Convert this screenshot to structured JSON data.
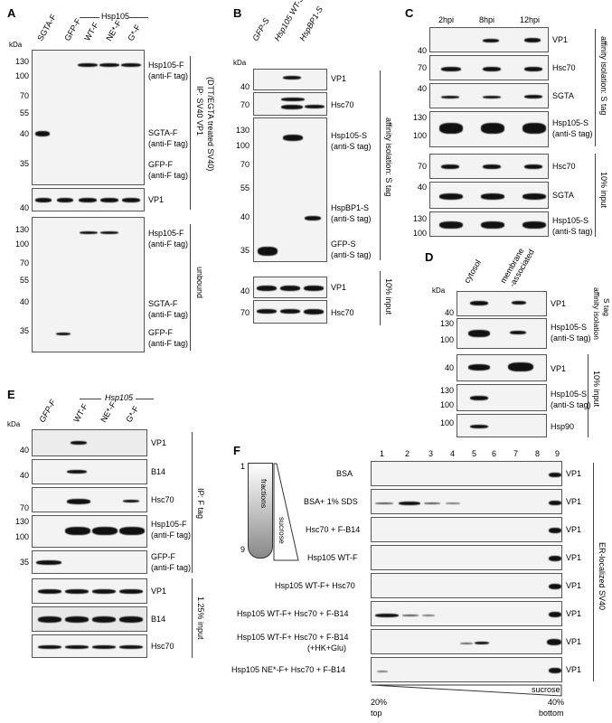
{
  "figure": {
    "panels": {
      "A": {
        "label": "A",
        "group_label": "Hsp105",
        "lanes": [
          "SGTA-F",
          "GFP-F",
          "WT-F",
          "NE*-F",
          "G*-F"
        ],
        "kda": "kDa",
        "top_markers": [
          "130",
          "100",
          "70",
          "55",
          "40",
          "35"
        ],
        "top_labels": [
          "Hsp105-F",
          "(anti-F tag)",
          "SGTA-F",
          "(anti-F tag)",
          "GFP-F",
          "(anti-F tag)"
        ],
        "vp1_marker": "40",
        "vp1_label": "VP1",
        "side_label_1": "IP: SV40 VP1",
        "side_label_2": "(DTT/EGTA treated SV40)",
        "bottom_markers": [
          "130",
          "100",
          "70",
          "55",
          "40",
          "35"
        ],
        "bottom_labels": [
          "Hsp105-F",
          "(anti-F tag)",
          "SGTA-F",
          "(anti-F tag)",
          "GFP-F",
          "(anti-F tag)"
        ],
        "unbound": "unbound"
      },
      "B": {
        "label": "B",
        "lanes": [
          "GFP-S",
          "Hsp105 WT-S",
          "HspBP1-S"
        ],
        "kda": "kDa",
        "vp1_marker": "40",
        "vp1_label": "VP1",
        "hsc_marker": "70",
        "hsc_label": "Hsc70",
        "main_markers": [
          "130",
          "100",
          "70",
          "55",
          "40",
          "35"
        ],
        "main_labels": [
          "Hsp105-S",
          "(anti-S tag)",
          "HspBP1-S",
          "(anti-S tag)",
          "GFP-S",
          "(anti-S tag)"
        ],
        "side_label": "affinity isolation: S tag",
        "input_markers": [
          "40",
          "70"
        ],
        "input_labels": [
          "VP1",
          "Hsc70"
        ],
        "input_side": "10% input"
      },
      "C": {
        "label": "C",
        "lanes": [
          "2hpi",
          "8hpi",
          "12hpi"
        ],
        "markers": [
          "40",
          "70",
          "40",
          "130",
          "100",
          "70",
          "40",
          "130",
          "100"
        ],
        "labels": [
          "VP1",
          "Hsc70",
          "SGTA",
          "Hsp105-S",
          "(anti-S tag)",
          "Hsc70",
          "SGTA",
          "Hsp105-S",
          "(anti-S tag)"
        ],
        "side_top": "affinity isolation: S tag",
        "side_bottom": "10% input"
      },
      "D": {
        "label": "D",
        "lanes": [
          "cytosol",
          "membrane",
          "-associated"
        ],
        "kda": "kDa",
        "markers": [
          "40",
          "130",
          "100",
          "40",
          "130",
          "100",
          "100"
        ],
        "labels": [
          "VP1",
          "Hsp105-S",
          "(anti-S tag)",
          "VP1",
          "Hsp105-S",
          "(anti-S tag)",
          "Hsp90"
        ],
        "side_top_1": "affinity isolation",
        "side_top_2": "S tag",
        "side_bottom": "10% input"
      },
      "E": {
        "label": "E",
        "group_label": "Hsp105",
        "lanes": [
          "GFP-F",
          "WT-F",
          "NE*-F",
          "G*-F"
        ],
        "kda": "kDa",
        "markers": [
          "40",
          "40",
          "70",
          "130",
          "100",
          "35"
        ],
        "labels": [
          "VP1",
          "B14",
          "Hsc70",
          "Hsp105-F",
          "(anti-F tag)",
          "GFP-F",
          "(anti-F tag)",
          "VP1",
          "B14",
          "Hsc70"
        ],
        "side_top": "IP: F tag",
        "side_bottom": "1.25% input"
      },
      "F": {
        "label": "F",
        "fraction_numbers": [
          "1",
          "2",
          "3",
          "4",
          "5",
          "6",
          "7",
          "8",
          "9"
        ],
        "tube_top": "1",
        "tube_bottom": "9",
        "tube_fractions": "fractions",
        "tube_sucrose": "sucrose",
        "rows": [
          "BSA",
          "BSA+ 1% SDS",
          "Hsc70 + F-B14",
          "Hsp105 WT-F",
          "Hsp105 WT-F+ Hsc70",
          "Hsp105 WT-F+ Hsc70 + F-B14",
          "Hsp105 WT-F+ Hsc70 + F-B14",
          "Hsp105 NE*-F+ Hsc70 + F-B14"
        ],
        "row7_extra": "(+HK+Glu)",
        "vp1_label": "VP1",
        "side_label": "ER-localized SV40",
        "bottom_left_1": "20%",
        "bottom_left_2": "top",
        "bottom_right_sucrose": "sucrose",
        "bottom_right_1": "40%",
        "bottom_right_2": "bottom"
      }
    }
  }
}
